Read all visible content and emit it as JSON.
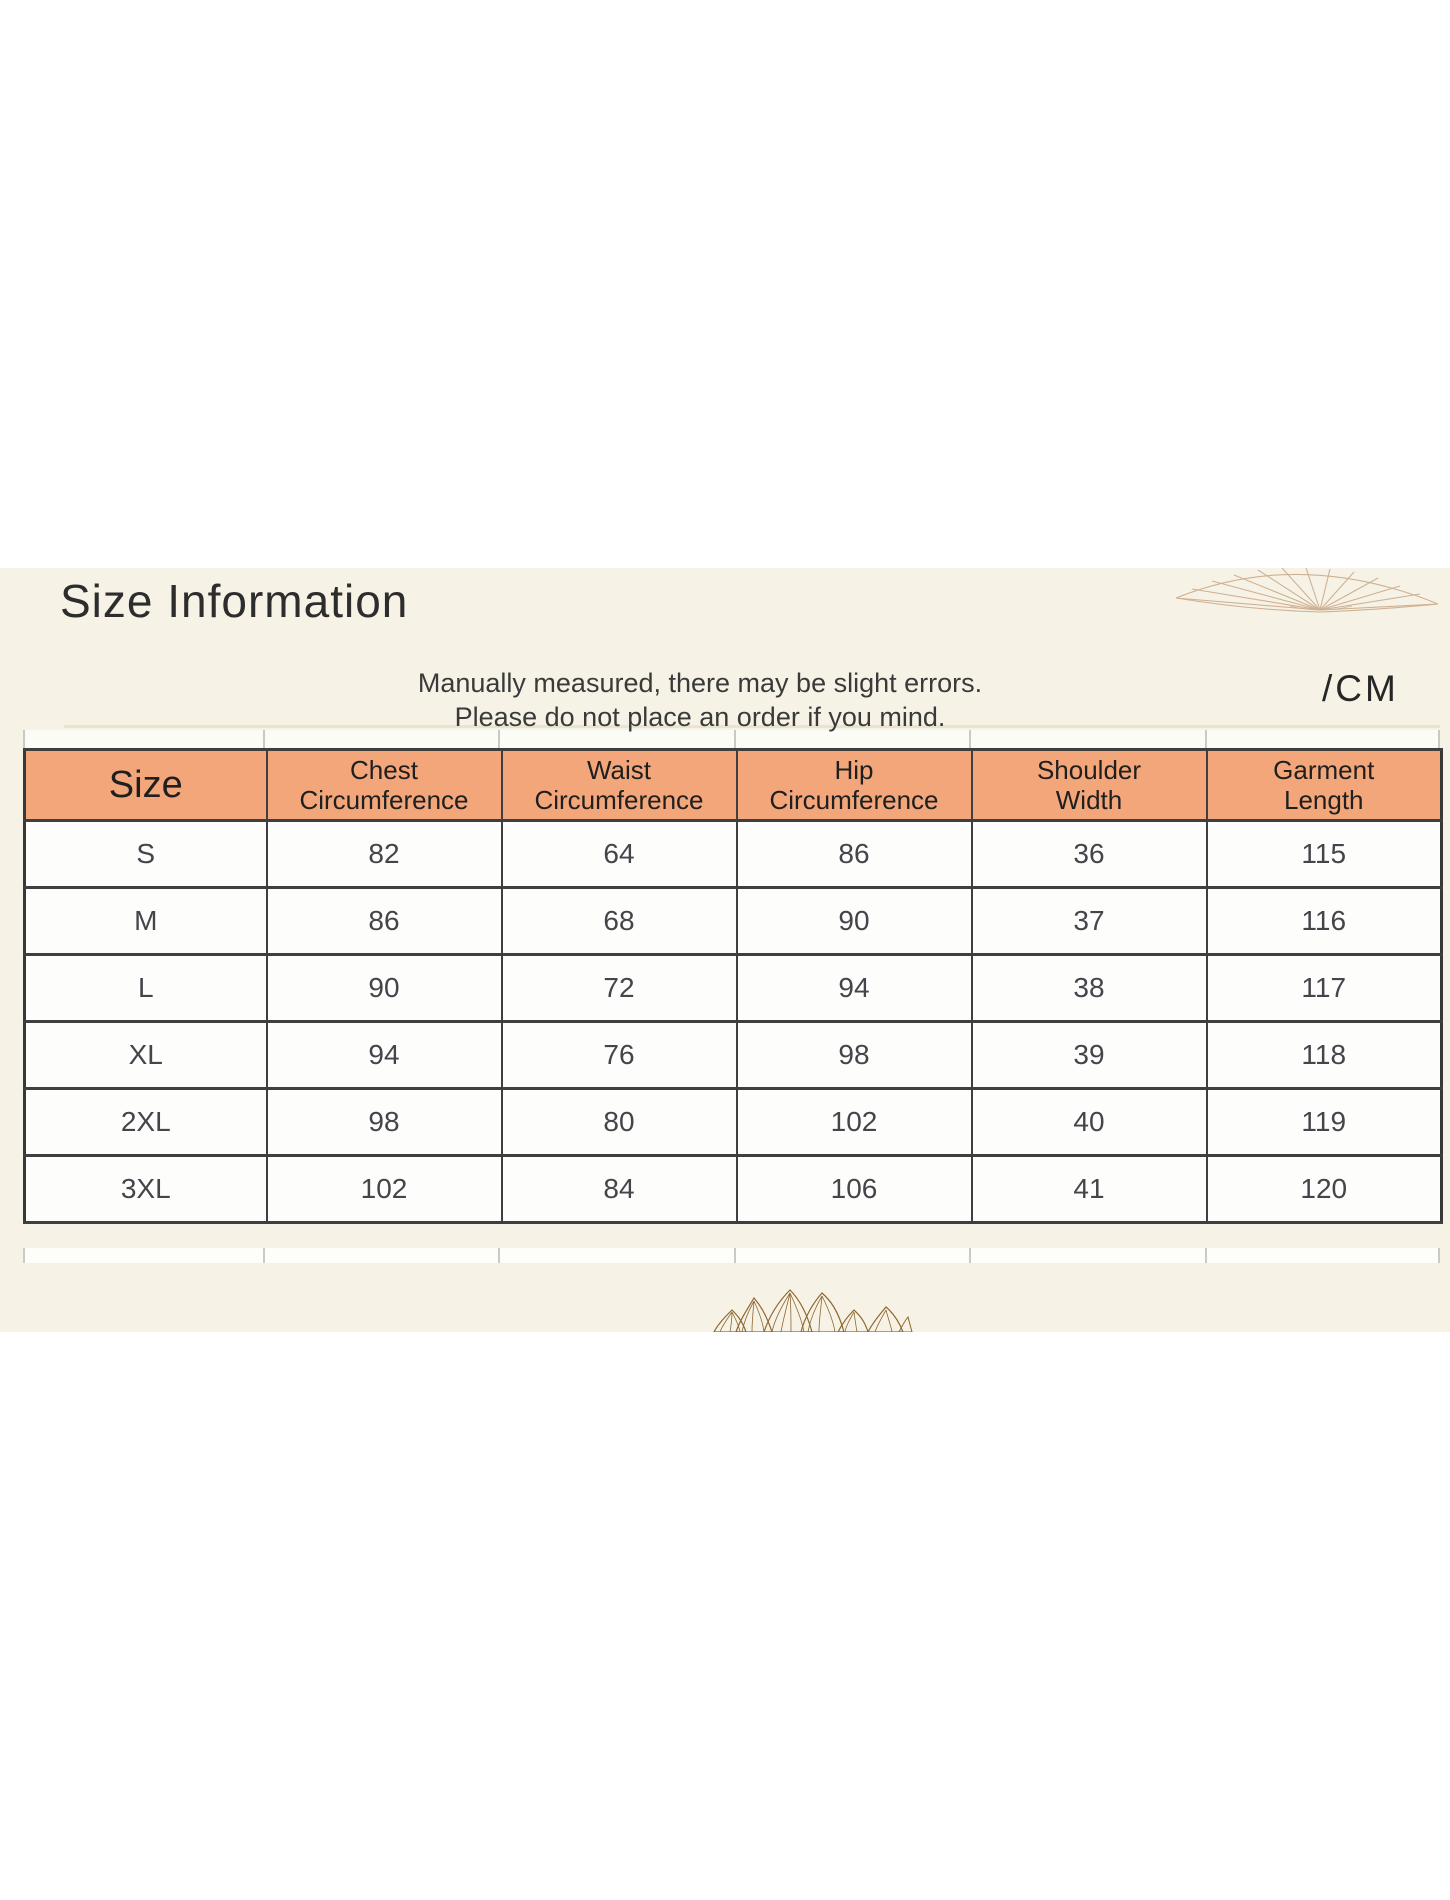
{
  "header": {
    "title": "Size Information",
    "note_line1": "Manually measured, there may be slight errors.",
    "note_line2": "Please do not place an order if you mind.",
    "unit_label": "/CM"
  },
  "size_table": {
    "columns": [
      {
        "line1": "Size",
        "line2": ""
      },
      {
        "line1": "Chest",
        "line2": "Circumference"
      },
      {
        "line1": "Waist",
        "line2": "Circumference"
      },
      {
        "line1": "Hip",
        "line2": "Circumference"
      },
      {
        "line1": "Shoulder",
        "line2": "Width"
      },
      {
        "line1": "Garment",
        "line2": "Length"
      }
    ],
    "rows": [
      {
        "size": "S",
        "values": [
          "82",
          "64",
          "86",
          "36",
          "115"
        ]
      },
      {
        "size": "M",
        "values": [
          "86",
          "68",
          "90",
          "37",
          "116"
        ]
      },
      {
        "size": "L",
        "values": [
          "90",
          "72",
          "94",
          "38",
          "117"
        ]
      },
      {
        "size": "XL",
        "values": [
          "94",
          "76",
          "98",
          "39",
          "118"
        ]
      },
      {
        "size": "2XL",
        "values": [
          "98",
          "80",
          "102",
          "40",
          "119"
        ]
      },
      {
        "size": "3XL",
        "values": [
          "102",
          "84",
          "106",
          "41",
          "120"
        ]
      }
    ]
  },
  "colors": {
    "header_bg": "#f2a679",
    "cream_bg": "#f6f3e6",
    "table_border": "#3f3f3f",
    "divider_line": "#e9e5cd",
    "decor_stroke": "#8f662e"
  },
  "icons": {
    "top_right": "lotus-leaf-fan-icon",
    "bottom": "lotus-flower-icon"
  }
}
